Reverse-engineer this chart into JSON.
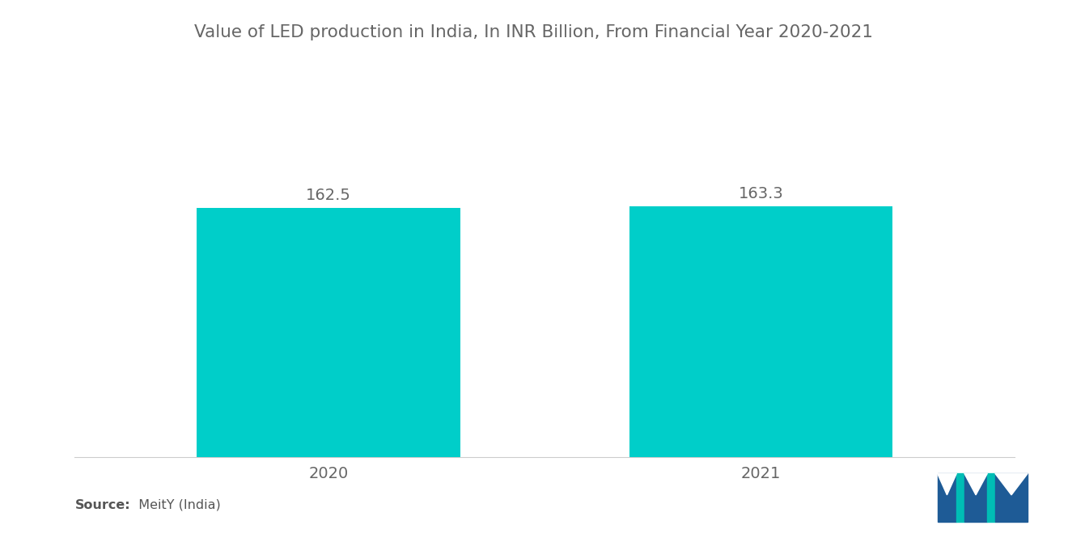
{
  "title": "Value of LED production in India, In INR Billion, From Financial Year 2020-2021",
  "categories": [
    "2020",
    "2021"
  ],
  "values": [
    162.5,
    163.3
  ],
  "bar_color": "#00CEC9",
  "background_color": "#ffffff",
  "title_fontsize": 15.5,
  "label_fontsize": 14,
  "value_fontsize": 14,
  "source_bold": "Source:",
  "source_rest": "  MeitY (India)",
  "ylim": [
    0,
    210
  ],
  "bar_width": 0.28,
  "bar_positions": [
    0.27,
    0.73
  ]
}
